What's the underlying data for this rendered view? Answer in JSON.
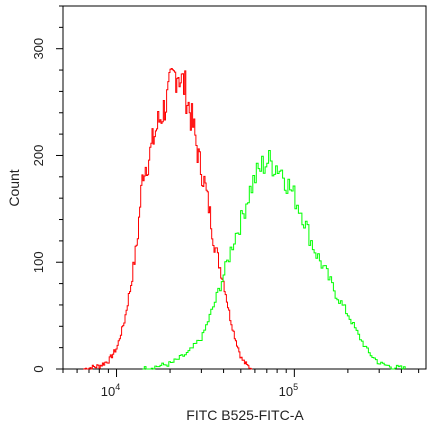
{
  "chart_data": {
    "type": "area",
    "xlabel": "FITC B525-FITC-A",
    "ylabel": "Count",
    "x_scale": "log",
    "xlim": [
      5000,
      550000
    ],
    "ylim": [
      0,
      340
    ],
    "y_ticks": [
      {
        "value": 0,
        "label": "0"
      },
      {
        "value": 100,
        "label": "100"
      },
      {
        "value": 200,
        "label": "200"
      },
      {
        "value": 300,
        "label": "300"
      }
    ],
    "x_ticks": [
      {
        "value": 10000,
        "base": "10",
        "exp": "4"
      },
      {
        "value": 100000,
        "base": "10",
        "exp": "5"
      }
    ],
    "grid": false,
    "series": [
      {
        "color": "#ff0000",
        "x": [
          6500,
          8000,
          9000,
          10000,
          11000,
          12000,
          13000,
          13500,
          14000,
          15000,
          16000,
          17000,
          18000,
          19000,
          20000,
          21000,
          22000,
          23000,
          24000,
          25000,
          27000,
          29000,
          31000,
          33000,
          35000,
          38000,
          40000,
          43000,
          46000,
          50000,
          54000,
          58000
        ],
        "y": [
          0,
          3,
          8,
          20,
          45,
          80,
          120,
          155,
          185,
          195,
          215,
          230,
          240,
          250,
          265,
          275,
          280,
          270,
          265,
          250,
          225,
          195,
          175,
          150,
          120,
          95,
          80,
          50,
          30,
          10,
          3,
          0
        ]
      },
      {
        "color": "#00ff00",
        "x": [
          14000,
          20000,
          25000,
          30000,
          35000,
          40000,
          45000,
          50000,
          55000,
          60000,
          65000,
          70000,
          75000,
          80000,
          85000,
          90000,
          100000,
          110000,
          120000,
          130000,
          150000,
          170000,
          200000,
          230000,
          260000,
          300000,
          350000,
          420000
        ],
        "y": [
          0,
          5,
          15,
          30,
          60,
          90,
          120,
          140,
          165,
          180,
          190,
          195,
          192,
          190,
          185,
          175,
          160,
          145,
          125,
          110,
          90,
          70,
          50,
          30,
          15,
          5,
          2,
          0
        ]
      }
    ]
  }
}
